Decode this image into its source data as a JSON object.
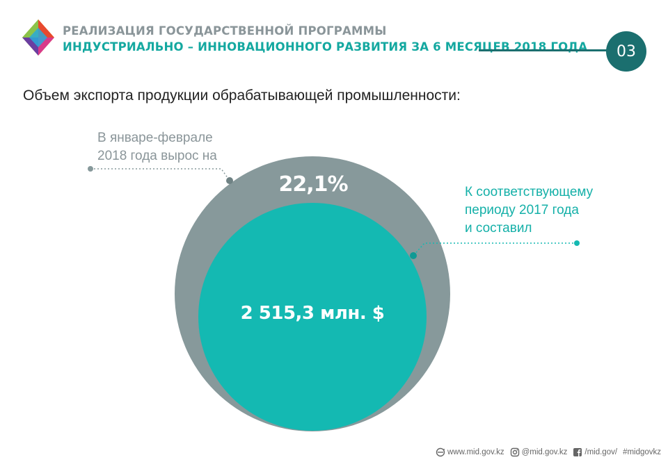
{
  "header": {
    "title_line1": "РЕАЛИЗАЦИЯ ГОСУДАРСТВЕННОЙ ПРОГРАММЫ",
    "title_line2": "ИНДУСТРИАЛЬНО – ИННОВАЦИОННОГО РАЗВИТИЯ ЗА 6 МЕСЯЦЕВ 2018 ГОДА",
    "page_number": "03"
  },
  "subtitle": "Объем экспорта продукции обрабатывающей промышленности:",
  "left_note": {
    "line1": "В январе-феврале",
    "line2": "2018 года вырос на"
  },
  "growth_percent": "22,1%",
  "right_note": {
    "line1": "К соответствующему",
    "line2": "периоду 2017 года",
    "line3": "и составил"
  },
  "export_value": "2 515,3 млн. $",
  "footer": {
    "website": "www.mid.gov.kz",
    "instagram": "@mid.gov.kz",
    "facebook": "/mid.gov/",
    "hashtag": "#midgovkz"
  },
  "colors": {
    "teal": "#14b9b2",
    "gray": "#87999b",
    "dark_teal": "#1b6f6f"
  }
}
